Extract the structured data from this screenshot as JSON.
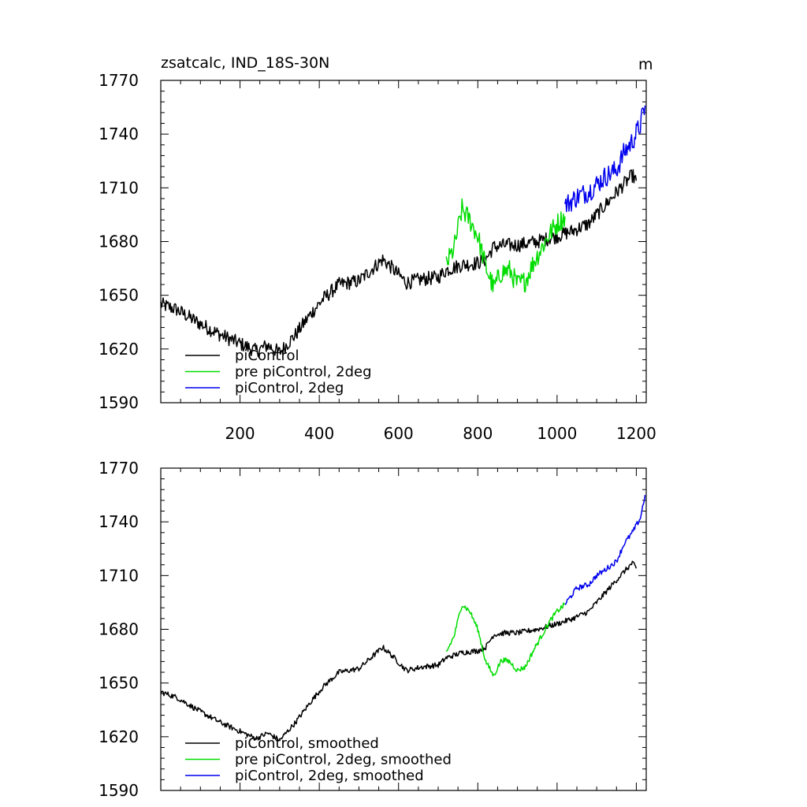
{
  "chart_data": [
    {
      "type": "line",
      "title": "zsatcalc, IND_18S-30N",
      "units": "m",
      "xlim": [
        0,
        1225
      ],
      "ylim": [
        1590,
        1770
      ],
      "yticks": [
        1590,
        1620,
        1650,
        1680,
        1710,
        1740,
        1770
      ],
      "xticks": [
        200,
        400,
        600,
        800,
        1000,
        1200
      ],
      "show_x_tick_labels": true,
      "legend_position": "bottom-left",
      "series": [
        {
          "name": "piControl",
          "color": "#000000",
          "noise": 4,
          "x": [
            0,
            40,
            100,
            150,
            200,
            240,
            270,
            300,
            340,
            380,
            410,
            450,
            500,
            530,
            560,
            580,
            620,
            660,
            700,
            720,
            760,
            800,
            820,
            840,
            870,
            900,
            950,
            1000,
            1040,
            1080,
            1120,
            1160,
            1190,
            1200
          ],
          "values": [
            1645,
            1642,
            1634,
            1628,
            1623,
            1619,
            1622,
            1618,
            1628,
            1640,
            1648,
            1656,
            1658,
            1664,
            1670,
            1666,
            1657,
            1659,
            1660,
            1664,
            1667,
            1668,
            1670,
            1677,
            1678,
            1678,
            1680,
            1683,
            1686,
            1690,
            1700,
            1710,
            1717,
            1714
          ]
        },
        {
          "name": "pre piControl, 2deg",
          "color": "#00dd00",
          "noise": 6,
          "x": [
            720,
            740,
            760,
            780,
            800,
            820,
            840,
            860,
            880,
            900,
            920,
            940,
            960,
            980,
            1000,
            1020
          ],
          "values": [
            1667,
            1676,
            1698,
            1692,
            1683,
            1666,
            1654,
            1663,
            1664,
            1656,
            1658,
            1668,
            1676,
            1684,
            1690,
            1694
          ]
        },
        {
          "name": "piControl, 2deg",
          "color": "#0000ee",
          "noise": 6,
          "x": [
            1020,
            1050,
            1080,
            1100,
            1120,
            1150,
            1170,
            1190,
            1210,
            1222
          ],
          "values": [
            1700,
            1705,
            1708,
            1712,
            1716,
            1720,
            1730,
            1736,
            1745,
            1756
          ]
        }
      ]
    },
    {
      "type": "line",
      "title": "",
      "units": "",
      "xlim": [
        0,
        1225
      ],
      "ylim": [
        1590,
        1770
      ],
      "yticks": [
        1590,
        1620,
        1650,
        1680,
        1710,
        1740,
        1770
      ],
      "xticks": [
        200,
        400,
        600,
        800,
        1000,
        1200
      ],
      "show_x_tick_labels": false,
      "legend_position": "bottom-left",
      "series": [
        {
          "name": "piControl, smoothed",
          "color": "#000000",
          "noise": 1.5,
          "x": [
            0,
            40,
            100,
            150,
            200,
            240,
            270,
            300,
            340,
            380,
            410,
            450,
            500,
            530,
            560,
            580,
            620,
            660,
            700,
            720,
            760,
            800,
            820,
            840,
            870,
            900,
            950,
            1000,
            1040,
            1080,
            1120,
            1160,
            1190,
            1200
          ],
          "values": [
            1645,
            1642,
            1634,
            1628,
            1623,
            1619,
            1622,
            1618,
            1628,
            1640,
            1648,
            1656,
            1658,
            1664,
            1670,
            1666,
            1657,
            1659,
            1660,
            1664,
            1667,
            1668,
            1670,
            1677,
            1678,
            1678,
            1680,
            1683,
            1686,
            1690,
            1700,
            1710,
            1717,
            1714
          ]
        },
        {
          "name": "pre piControl, 2deg, smoothed",
          "color": "#00dd00",
          "noise": 1.5,
          "x": [
            720,
            740,
            760,
            780,
            800,
            820,
            840,
            860,
            880,
            900,
            920,
            940,
            960,
            980,
            1000,
            1020
          ],
          "values": [
            1667,
            1676,
            1694,
            1690,
            1680,
            1662,
            1654,
            1663,
            1662,
            1657,
            1659,
            1668,
            1676,
            1684,
            1690,
            1694
          ]
        },
        {
          "name": "piControl, 2deg, smoothed",
          "color": "#0000ee",
          "noise": 1.5,
          "x": [
            1020,
            1050,
            1080,
            1100,
            1120,
            1150,
            1170,
            1190,
            1210,
            1222
          ],
          "values": [
            1694,
            1703,
            1705,
            1710,
            1713,
            1718,
            1728,
            1734,
            1742,
            1755
          ]
        }
      ]
    }
  ]
}
